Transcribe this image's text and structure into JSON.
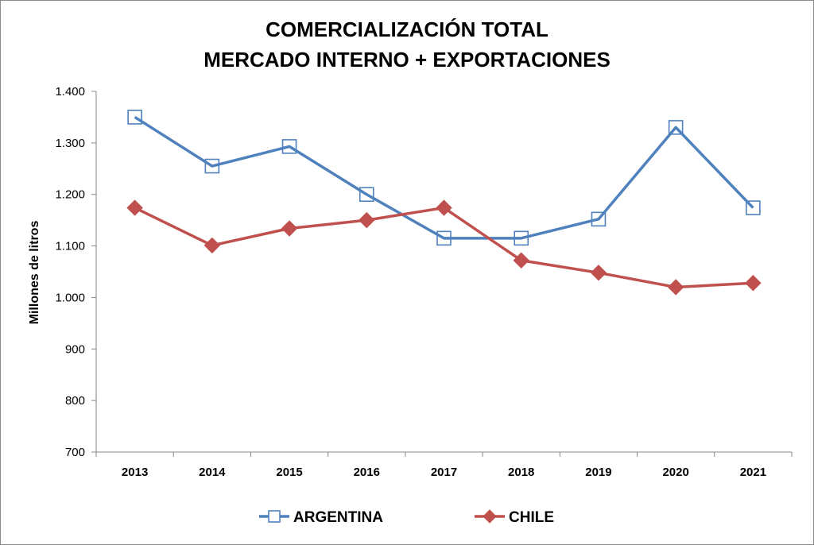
{
  "chart_data": {
    "type": "line",
    "title": [
      "COMERCIALIZACIÓN TOTAL",
      "MERCADO INTERNO + EXPORTACIONES"
    ],
    "ylabel": "Millones de litros",
    "xlabel": "",
    "categories": [
      "2013",
      "2014",
      "2015",
      "2016",
      "2017",
      "2018",
      "2019",
      "2020",
      "2021"
    ],
    "ylim": [
      700,
      1400
    ],
    "yticks": [
      700,
      800,
      900,
      1000,
      1100,
      1200,
      1300,
      1400
    ],
    "ytick_labels": [
      "700",
      "800",
      "900",
      "1.000",
      "1.100",
      "1.200",
      "1.300",
      "1.400"
    ],
    "grid": false,
    "legend_position": "bottom",
    "series": [
      {
        "name": "ARGENTINA",
        "values": [
          1350,
          1255,
          1293,
          1200,
          1115,
          1115,
          1152,
          1330,
          1174
        ],
        "color": "#4f81bd",
        "marker": "hollow-square"
      },
      {
        "name": "CHILE",
        "values": [
          1174,
          1101,
          1134,
          1150,
          1174,
          1072,
          1048,
          1020,
          1028
        ],
        "color": "#c0504d",
        "marker": "diamond"
      }
    ]
  }
}
